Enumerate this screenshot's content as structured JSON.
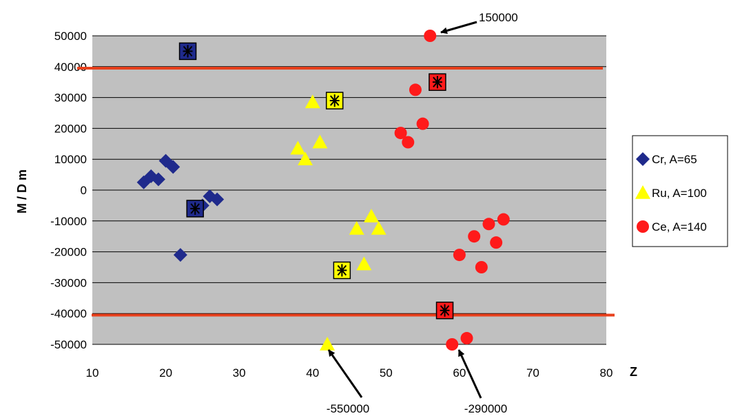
{
  "chart_data": {
    "type": "scatter",
    "xlabel": "Z",
    "ylabel": "M / D m",
    "xlim": [
      10,
      80
    ],
    "ylim": [
      -50000,
      50000
    ],
    "xticks": [
      "10",
      "20",
      "30",
      "40",
      "50",
      "60",
      "70",
      "80"
    ],
    "yticks": [
      "50000",
      "40000",
      "30000",
      "20000",
      "10000",
      "0",
      "-10000",
      "-20000",
      "-30000",
      "-40000",
      "-50000"
    ],
    "grid": "horizontal",
    "legend_position": "right",
    "plot_background": "#c0c0c0",
    "reference_lines": {
      "y": [
        39500,
        -40500
      ],
      "color": "#e8401c"
    },
    "series": [
      {
        "name": "Cr, A=65",
        "marker": "diamond",
        "color": "#1f2a8c",
        "points": [
          {
            "x": 17,
            "y": 2500
          },
          {
            "x": 18,
            "y": 4500
          },
          {
            "x": 19,
            "y": 3500
          },
          {
            "x": 20,
            "y": 9500
          },
          {
            "x": 21,
            "y": 7500
          },
          {
            "x": 25,
            "y": -5000
          },
          {
            "x": 26,
            "y": -2000
          },
          {
            "x": 27,
            "y": -3000
          },
          {
            "x": 22,
            "y": -21000
          }
        ],
        "highlighted": [
          {
            "x": 23,
            "y": 45000
          },
          {
            "x": 24,
            "y": -6000
          }
        ]
      },
      {
        "name": "Ru, A=100",
        "marker": "triangle",
        "color": "#ffff00",
        "points": [
          {
            "x": 40,
            "y": 28500
          },
          {
            "x": 38,
            "y": 13500
          },
          {
            "x": 39,
            "y": 10000
          },
          {
            "x": 41,
            "y": 15500
          },
          {
            "x": 46,
            "y": -12500
          },
          {
            "x": 48,
            "y": -8500
          },
          {
            "x": 49,
            "y": -12500
          },
          {
            "x": 47,
            "y": -24000
          },
          {
            "x": 42,
            "y": -50000
          }
        ],
        "highlighted": [
          {
            "x": 43,
            "y": 29000
          },
          {
            "x": 44,
            "y": -26000
          }
        ]
      },
      {
        "name": "Ce, A=140",
        "marker": "circle",
        "color": "#ff1a1a",
        "points": [
          {
            "x": 56,
            "y": 50000
          },
          {
            "x": 54,
            "y": 32500
          },
          {
            "x": 52,
            "y": 18500
          },
          {
            "x": 53,
            "y": 15500
          },
          {
            "x": 55,
            "y": 21500
          },
          {
            "x": 60,
            "y": -21000
          },
          {
            "x": 62,
            "y": -15000
          },
          {
            "x": 63,
            "y": -25000
          },
          {
            "x": 64,
            "y": -11000
          },
          {
            "x": 65,
            "y": -17000
          },
          {
            "x": 66,
            "y": -9500
          },
          {
            "x": 59,
            "y": -50000
          },
          {
            "x": 61,
            "y": -48000
          }
        ],
        "highlighted": [
          {
            "x": 57,
            "y": 35000
          },
          {
            "x": 58,
            "y": -39000
          }
        ]
      }
    ],
    "annotations": [
      {
        "text": "150000",
        "point": {
          "x": 56,
          "y": 50000
        }
      },
      {
        "text": "-550000",
        "point": {
          "x": 42,
          "y": -50000
        }
      },
      {
        "text": "-290000",
        "point": {
          "x": 59,
          "y": -50000
        }
      }
    ]
  }
}
